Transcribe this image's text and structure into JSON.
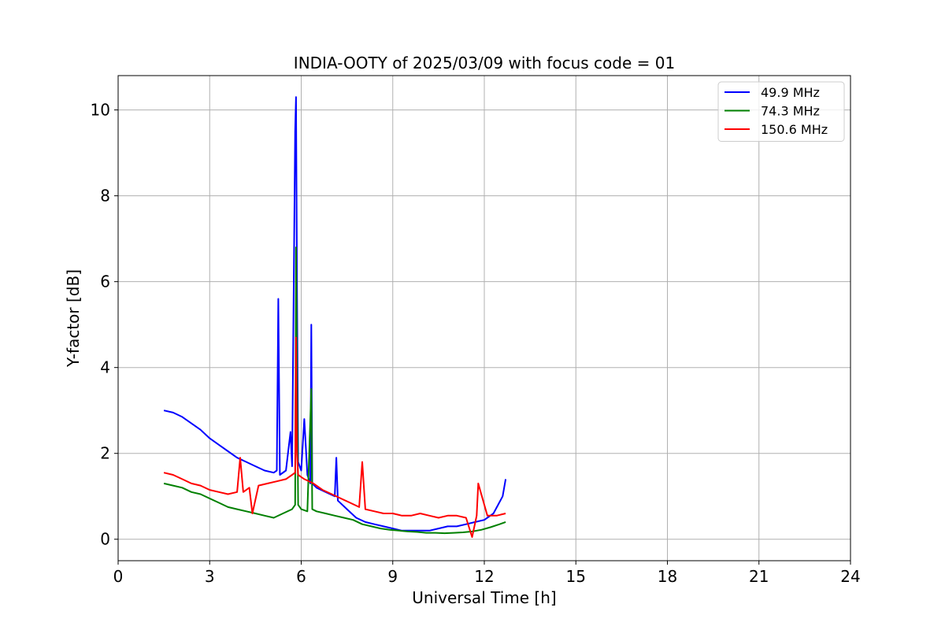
{
  "chart_data": {
    "type": "line",
    "title": "INDIA-OOTY of 2025/03/09 with focus code = 01",
    "xlabel": "Universal Time [h]",
    "ylabel": "Y-factor [dB]",
    "xlim": [
      0,
      24
    ],
    "ylim": [
      -0.5,
      10.8
    ],
    "xticks": [
      0,
      3,
      6,
      9,
      12,
      15,
      18,
      21,
      24
    ],
    "yticks": [
      0,
      2,
      4,
      6,
      8,
      10
    ],
    "grid": true,
    "legend_position": "top-right",
    "series": [
      {
        "name": "49.9 MHz",
        "color": "#0000ff",
        "x": [
          1.5,
          1.8,
          2.1,
          2.4,
          2.7,
          3.0,
          3.3,
          3.6,
          3.9,
          4.2,
          4.5,
          4.8,
          5.1,
          5.2,
          5.25,
          5.3,
          5.5,
          5.65,
          5.7,
          5.8,
          5.83,
          5.86,
          5.9,
          6.0,
          6.1,
          6.2,
          6.3,
          6.33,
          6.36,
          6.5,
          6.8,
          7.1,
          7.15,
          7.2,
          7.5,
          7.8,
          8.1,
          8.4,
          8.7,
          9.0,
          9.3,
          9.6,
          9.9,
          10.2,
          10.5,
          10.8,
          11.1,
          11.4,
          11.7,
          12.0,
          12.3,
          12.6,
          12.7
        ],
        "y": [
          3.0,
          2.95,
          2.85,
          2.7,
          2.55,
          2.35,
          2.2,
          2.05,
          1.9,
          1.8,
          1.7,
          1.6,
          1.55,
          1.6,
          5.6,
          1.5,
          1.6,
          2.5,
          1.7,
          9.5,
          10.3,
          6.0,
          1.8,
          1.6,
          2.8,
          1.5,
          1.3,
          5.0,
          1.3,
          1.2,
          1.1,
          1.0,
          1.9,
          0.9,
          0.7,
          0.5,
          0.4,
          0.35,
          0.3,
          0.25,
          0.2,
          0.2,
          0.2,
          0.2,
          0.25,
          0.3,
          0.3,
          0.35,
          0.4,
          0.45,
          0.6,
          1.0,
          1.4
        ]
      },
      {
        "name": "74.3 MHz",
        "color": "#008000",
        "x": [
          1.5,
          1.8,
          2.1,
          2.4,
          2.7,
          3.0,
          3.3,
          3.6,
          3.9,
          4.2,
          4.5,
          4.8,
          5.1,
          5.4,
          5.7,
          5.8,
          5.83,
          5.86,
          5.9,
          6.0,
          6.2,
          6.33,
          6.36,
          6.5,
          6.8,
          7.1,
          7.4,
          7.7,
          8.0,
          8.3,
          8.6,
          8.9,
          9.2,
          9.5,
          9.8,
          10.1,
          10.4,
          10.7,
          11.0,
          11.3,
          11.6,
          11.9,
          12.2,
          12.5,
          12.7
        ],
        "y": [
          1.3,
          1.25,
          1.2,
          1.1,
          1.05,
          0.95,
          0.85,
          0.75,
          0.7,
          0.65,
          0.6,
          0.55,
          0.5,
          0.6,
          0.7,
          0.8,
          6.8,
          4.0,
          0.8,
          0.7,
          0.65,
          3.5,
          0.7,
          0.65,
          0.6,
          0.55,
          0.5,
          0.45,
          0.35,
          0.3,
          0.25,
          0.22,
          0.2,
          0.18,
          0.17,
          0.15,
          0.15,
          0.14,
          0.15,
          0.16,
          0.18,
          0.22,
          0.28,
          0.35,
          0.4
        ]
      },
      {
        "name": "150.6 MHz",
        "color": "#ff0000",
        "x": [
          1.5,
          1.8,
          2.1,
          2.4,
          2.7,
          3.0,
          3.3,
          3.6,
          3.9,
          4.0,
          4.1,
          4.3,
          4.4,
          4.6,
          4.9,
          5.2,
          5.5,
          5.7,
          5.8,
          5.83,
          5.86,
          5.9,
          6.1,
          6.4,
          6.7,
          7.0,
          7.3,
          7.6,
          7.9,
          8.0,
          8.1,
          8.4,
          8.7,
          9.0,
          9.3,
          9.6,
          9.9,
          10.2,
          10.5,
          10.8,
          11.1,
          11.4,
          11.6,
          11.75,
          11.8,
          12.1,
          12.4,
          12.7
        ],
        "y": [
          1.55,
          1.5,
          1.4,
          1.3,
          1.25,
          1.15,
          1.1,
          1.05,
          1.1,
          1.9,
          1.1,
          1.2,
          0.6,
          1.25,
          1.3,
          1.35,
          1.4,
          1.5,
          1.55,
          4.7,
          2.0,
          1.5,
          1.4,
          1.3,
          1.15,
          1.05,
          0.95,
          0.85,
          0.75,
          1.8,
          0.7,
          0.65,
          0.6,
          0.6,
          0.55,
          0.55,
          0.6,
          0.55,
          0.5,
          0.55,
          0.55,
          0.5,
          0.05,
          0.55,
          1.3,
          0.55,
          0.55,
          0.6
        ]
      }
    ]
  }
}
